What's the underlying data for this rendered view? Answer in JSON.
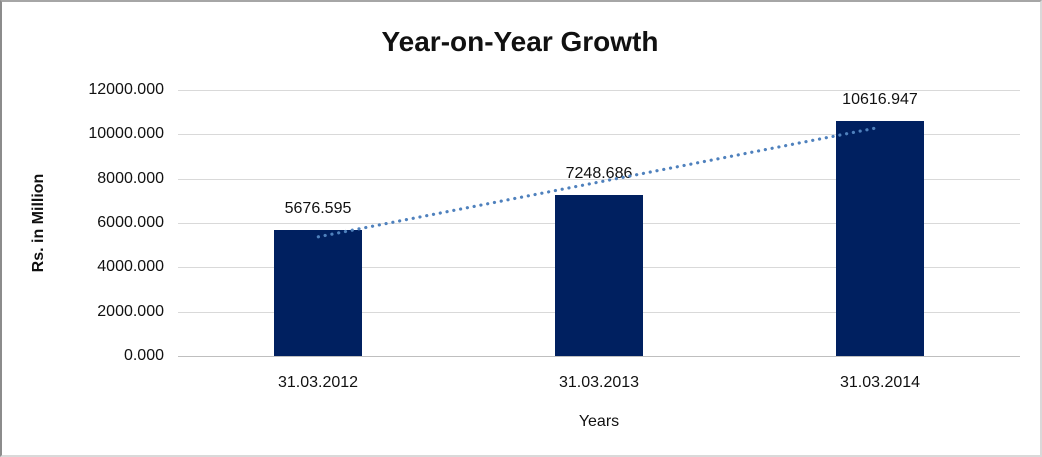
{
  "window": {
    "background": "#ffffff",
    "frame_border_color": "#bfbfbf"
  },
  "chart_data": {
    "type": "bar",
    "title": "Year-on-Year Growth",
    "xlabel": "Years",
    "ylabel": "Rs. in Million",
    "categories": [
      "31.03.2012",
      "31.03.2013",
      "31.03.2014"
    ],
    "values": [
      5676.595,
      7248.686,
      10616.947
    ],
    "data_labels": [
      "5676.595",
      "7248.686",
      "10616.947"
    ],
    "y_ticks": [
      "12000.000",
      "10000.000",
      "8000.000",
      "6000.000",
      "4000.000",
      "2000.000",
      "0.000"
    ],
    "ylim": [
      0,
      12000
    ],
    "grid": true,
    "legend_position": "none",
    "bar_color": "#002060",
    "gridline_color": "#d9d9d9",
    "axis_line_color": "#bfbfbf",
    "trendline": {
      "type": "linear",
      "style": "dotted",
      "color": "#4f81bd"
    }
  }
}
